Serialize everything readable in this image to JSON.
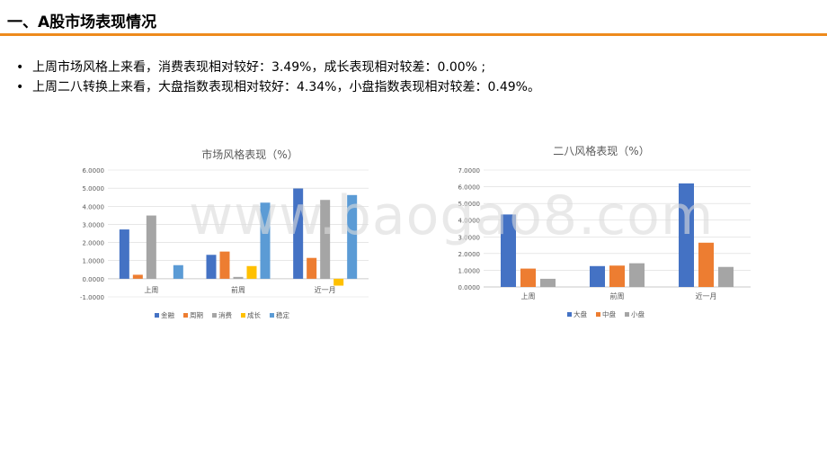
{
  "header": {
    "title": "一、A股市场表现情况"
  },
  "bullets": [
    "上周市场风格上来看，消费表现相对较好：3.49%，成长表现相对较差：0.00% ;",
    "上周二八转换上来看，大盘指数表现相对较好：4.34%，小盘指数表现相对较差：0.49%。"
  ],
  "watermark": "www.baogao8.com",
  "colors": {
    "title_rule": "#ee8a1c"
  },
  "chart_data": [
    {
      "type": "bar",
      "title": "市场风格表现（%）",
      "categories": [
        "上周",
        "前周",
        "近一月"
      ],
      "ylim": [
        -1,
        6
      ],
      "yticks": [
        "6.0000",
        "5.0000",
        "4.0000",
        "3.0000",
        "2.0000",
        "1.0000",
        "0.0000",
        "-1.0000"
      ],
      "grid": true,
      "legend_position": "bottom",
      "series": [
        {
          "name": "金融",
          "color": "#4472c4",
          "values": [
            2.72,
            1.32,
            4.98
          ]
        },
        {
          "name": "周期",
          "color": "#ed7d31",
          "values": [
            0.22,
            1.5,
            1.15
          ]
        },
        {
          "name": "消费",
          "color": "#a5a5a5",
          "values": [
            3.49,
            0.1,
            4.35
          ]
        },
        {
          "name": "成长",
          "color": "#ffc000",
          "values": [
            0.0,
            0.7,
            -0.38
          ]
        },
        {
          "name": "稳定",
          "color": "#5b9bd5",
          "values": [
            0.75,
            4.2,
            4.62
          ]
        }
      ]
    },
    {
      "type": "bar",
      "title": "二八风格表现（%）",
      "categories": [
        "上周",
        "前周",
        "近一月"
      ],
      "ylim": [
        0,
        7
      ],
      "yticks": [
        "7.0000",
        "6.0000",
        "5.0000",
        "4.0000",
        "3.0000",
        "2.0000",
        "1.0000",
        "0.0000"
      ],
      "grid": true,
      "legend_position": "bottom",
      "series": [
        {
          "name": "大盘",
          "color": "#4472c4",
          "values": [
            4.34,
            1.25,
            6.2
          ]
        },
        {
          "name": "中盘",
          "color": "#ed7d31",
          "values": [
            1.1,
            1.28,
            2.65
          ]
        },
        {
          "name": "小盘",
          "color": "#a5a5a5",
          "values": [
            0.49,
            1.42,
            1.2
          ]
        }
      ]
    }
  ]
}
